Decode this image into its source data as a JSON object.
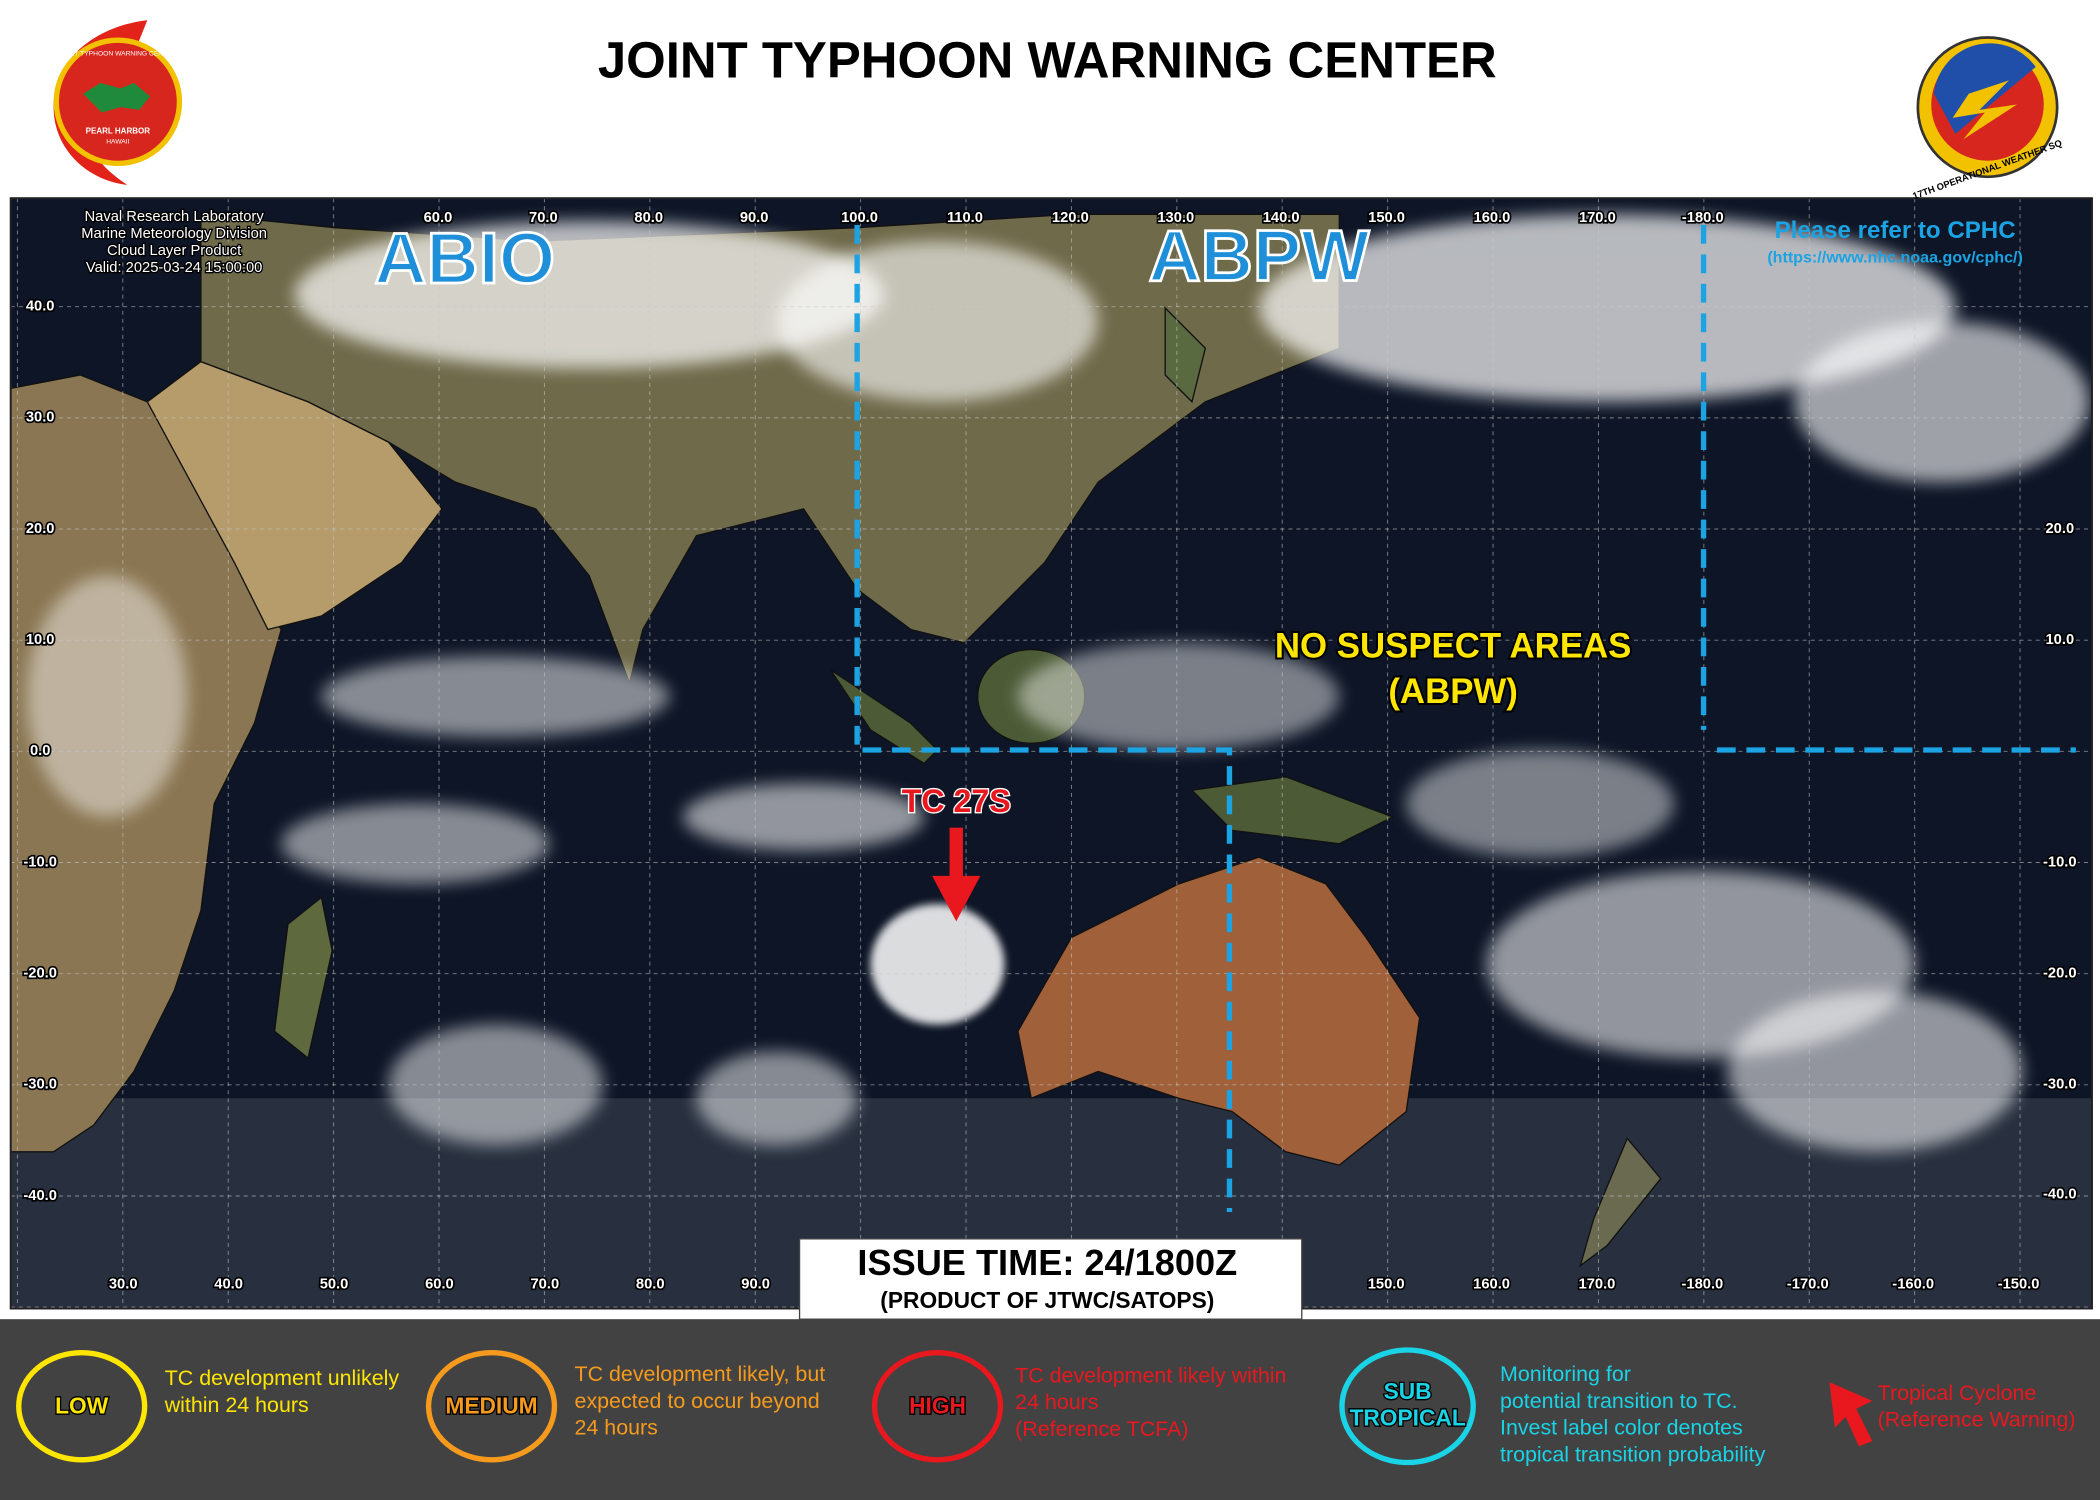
{
  "header": {
    "title": "JOINT TYPHOON WARNING CENTER",
    "left_logo": [
      "JOINT TYPHOON WARNING CENTER",
      "PEARL HARBOR",
      "HAWAII"
    ],
    "right_logo": "17TH OPERATIONAL WEATHER SQ"
  },
  "map": {
    "source_lines": [
      "Naval Research Laboratory",
      "Marine Meteorology Division",
      "Cloud Layer Product",
      "Valid: 2025-03-24 15:00:00"
    ],
    "lon_labels_top": [
      "60.0",
      "70.0",
      "80.0",
      "90.0",
      "100.0",
      "110.0",
      "120.0",
      "130.0",
      "140.0",
      "150.0",
      "160.0",
      "170.0",
      "-180.0"
    ],
    "lon_labels_bottom_left": [
      "30.0",
      "40.0",
      "50.0",
      "60.0",
      "70.0",
      "80.0",
      "90.0"
    ],
    "lon_labels_bottom_right": [
      "150.0",
      "160.0",
      "170.0",
      "-180.0",
      "-170.0",
      "-160.0",
      "-150.0"
    ],
    "lat_labels_left": [
      "40.0",
      "30.0",
      "20.0",
      "10.0",
      "0.0",
      "-10.0",
      "-20.0",
      "-30.0",
      "-40.0"
    ],
    "lat_labels_right": [
      "20.0",
      "10.0",
      "-10.0",
      "-20.0",
      "-30.0",
      "-40.0"
    ],
    "regions": {
      "abio": "ABIO",
      "abpw": "ABPW",
      "cphc": "Please refer to CPHC",
      "cphc_url": "(https://www.nhc.noaa.gov/cphc/)"
    },
    "no_suspect": [
      "NO SUSPECT AREAS",
      "(ABPW)"
    ],
    "tc_label": "TC 27S",
    "issue_time": "ISSUE TIME: 24/1800Z",
    "product": "(PRODUCT OF JTWC/SATOPS)"
  },
  "legend": {
    "low": {
      "label": "LOW",
      "text": [
        "TC development  unlikely",
        "within 24 hours"
      ]
    },
    "medium": {
      "label": "MEDIUM",
      "text": [
        "TC development likely, but",
        "expected to occur beyond",
        "24 hours"
      ]
    },
    "high": {
      "label": "HIGH",
      "text": [
        "TC development likely within",
        "24 hours",
        "(Reference TCFA)"
      ]
    },
    "subtropical": {
      "label": [
        "SUB",
        "TROPICAL"
      ],
      "text": [
        "Monitoring  for",
        "potential  transition to TC.",
        "Invest label color denotes",
        "tropical transition probability"
      ]
    },
    "cyclone": {
      "text": [
        "Tropical Cyclone",
        "(Reference Warning)"
      ]
    }
  }
}
